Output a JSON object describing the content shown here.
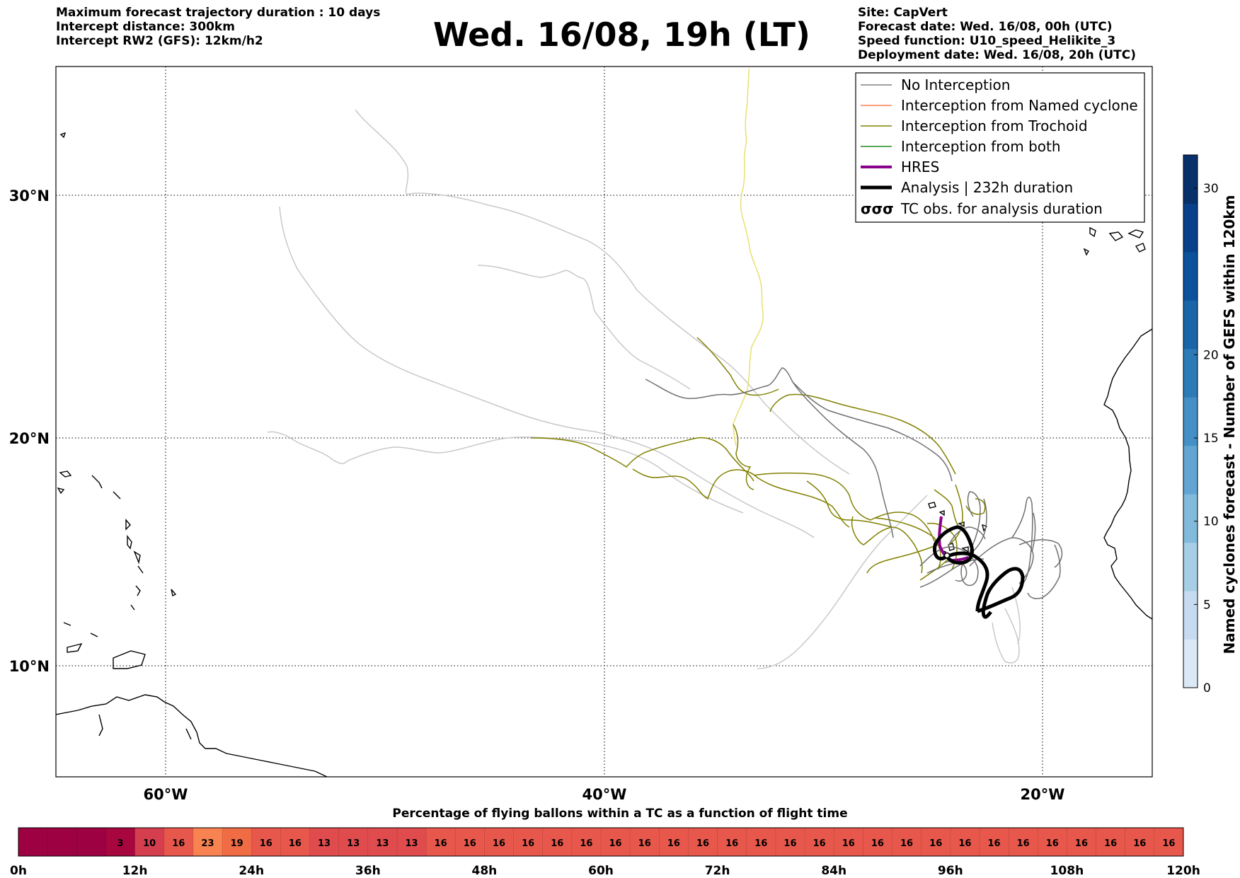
{
  "header": {
    "left_lines": [
      "Maximum forecast trajectory duration : 10 days",
      "Intercept distance: 300km",
      "Intercept RW2 (GFS):  12km/h2"
    ],
    "title": "Wed. 16/08, 19h (LT)",
    "right_lines": [
      "Site: CapVert",
      "Forecast date: Wed. 16/08, 00h (UTC)",
      "Speed function: U10_speed_Helikite_3",
      "Deployment date: Wed. 16/08, 20h (UTC)"
    ]
  },
  "map": {
    "lon_range": [
      -65,
      -15
    ],
    "lat_range": [
      5,
      34.5
    ],
    "lat_labels": [
      {
        "lat": 30,
        "text": "30°N"
      },
      {
        "lat": 20,
        "text": "20°N"
      },
      {
        "lat": 10,
        "text": "10°N"
      }
    ],
    "lon_labels": [
      {
        "lon": -60,
        "text": "60°W"
      },
      {
        "lon": -40,
        "text": "40°W"
      },
      {
        "lon": -20,
        "text": "20°W"
      }
    ]
  },
  "legend": {
    "items": [
      {
        "label": "No Interception",
        "color": "#808080",
        "width": 1.5
      },
      {
        "label": "Interception from Named cyclone",
        "color": "#ff7f50",
        "width": 1.5
      },
      {
        "label": "Interception from Trochoid",
        "color": "#808000",
        "width": 1.5
      },
      {
        "label": "Interception from both",
        "color": "#228b22",
        "width": 1.5
      },
      {
        "label": "HRES",
        "color": "#8b008b",
        "width": 4
      },
      {
        "label": "Analysis | 232h duration",
        "color": "#000000",
        "width": 5
      },
      {
        "label": "TC obs. for analysis duration",
        "color": "#000000",
        "symbol": "σσσ"
      }
    ]
  },
  "colorbar": {
    "label": "Named cyclones forecast - Number of GEFS within 120km",
    "range": [
      0,
      32
    ],
    "ticks": [
      "0",
      "5",
      "10",
      "15",
      "20",
      "30"
    ],
    "tick_values": [
      0,
      5,
      10,
      15,
      20,
      30
    ],
    "colors": [
      "#dbe9f6",
      "#c6dbef",
      "#a6cee4",
      "#82badb",
      "#62a5d3",
      "#4490c6",
      "#2c7bb6",
      "#1a65a8",
      "#0b519b",
      "#08408a",
      "#08306b"
    ]
  },
  "strip": {
    "title": "Percentage of flying ballons within a TC as a function of flight time",
    "cells": [
      "",
      "",
      "",
      "3",
      "10",
      "16",
      "23",
      "19",
      "16",
      "16",
      "13",
      "13",
      "13",
      "13",
      "16",
      "16",
      "16",
      "16",
      "16",
      "16",
      "16",
      "16",
      "16",
      "16",
      "16",
      "16",
      "16",
      "16",
      "16",
      "16",
      "16",
      "16",
      "16",
      "16",
      "16",
      "16",
      "16",
      "16",
      "16",
      "16"
    ],
    "values": [
      0,
      0,
      0,
      3,
      10,
      16,
      23,
      19,
      16,
      16,
      13,
      13,
      13,
      13,
      16,
      16,
      16,
      16,
      16,
      16,
      16,
      16,
      16,
      16,
      16,
      16,
      16,
      16,
      16,
      16,
      16,
      16,
      16,
      16,
      16,
      16,
      16,
      16,
      16,
      16
    ],
    "hour_labels": [
      "0h",
      "12h",
      "24h",
      "36h",
      "48h",
      "60h",
      "72h",
      "84h",
      "96h",
      "108h",
      "120h"
    ]
  }
}
